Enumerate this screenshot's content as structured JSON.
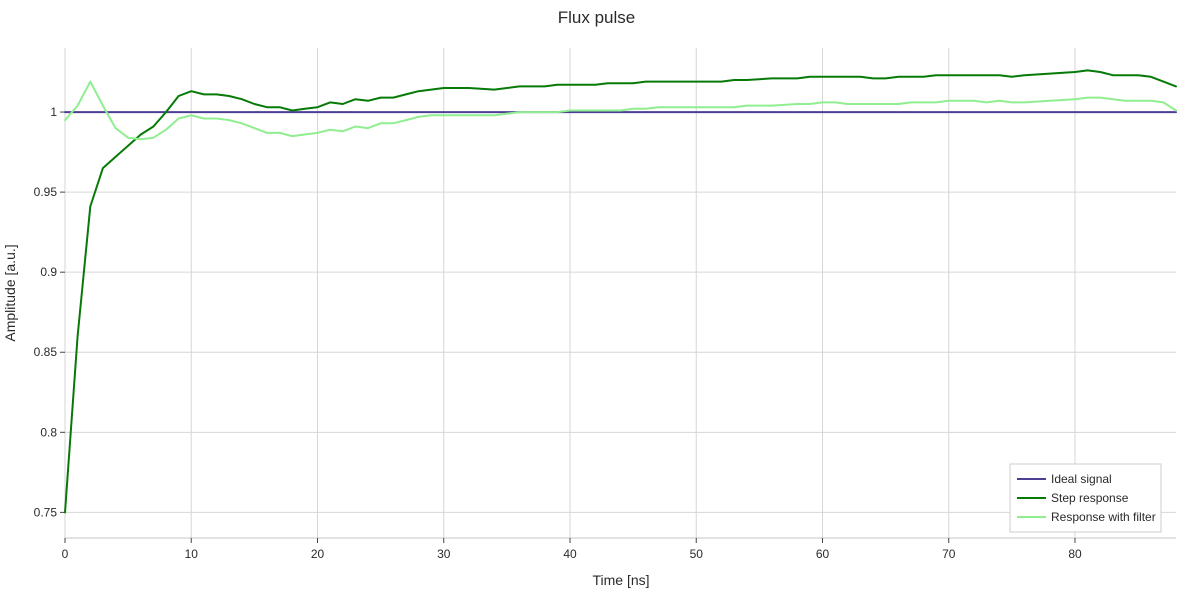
{
  "chart_data": {
    "type": "line",
    "title": "Flux pulse",
    "xlabel": "Time [ns]",
    "ylabel": "Amplitude [a.u.]",
    "xlim": [
      0,
      88
    ],
    "ylim": [
      0.734,
      1.04
    ],
    "xticks": [
      0,
      10,
      20,
      30,
      40,
      50,
      60,
      70,
      80
    ],
    "yticks": [
      0.75,
      0.8,
      0.85,
      0.9,
      0.95,
      1
    ],
    "ytick_labels": [
      "0.75",
      "0.8",
      "0.85",
      "0.9",
      "0.95",
      "1"
    ],
    "grid": true,
    "legend_position": "bottom-right",
    "series": [
      {
        "name": "Ideal signal",
        "color": "#4b3f93",
        "x": [
          0,
          88
        ],
        "y": [
          1.0,
          1.0
        ]
      },
      {
        "name": "Step response",
        "color": "#067a06",
        "x": [
          0,
          1,
          2,
          3,
          4,
          5,
          6,
          7,
          8,
          9,
          10,
          11,
          12,
          13,
          14,
          15,
          16,
          17,
          18,
          19,
          20,
          21,
          22,
          23,
          24,
          25,
          26,
          27,
          28,
          29,
          30,
          32,
          34,
          36,
          37,
          38,
          39,
          40,
          41,
          42,
          43,
          44,
          45,
          46,
          47,
          48,
          50,
          52,
          53,
          54,
          56,
          58,
          59,
          60,
          61,
          62,
          63,
          64,
          65,
          66,
          67,
          68,
          69,
          70,
          71,
          72,
          73,
          74,
          75,
          76,
          78,
          80,
          81,
          82,
          83,
          84,
          85,
          86,
          87,
          88
        ],
        "y": [
          0.75,
          0.86,
          0.941,
          0.965,
          0.972,
          0.979,
          0.986,
          0.991,
          1.0,
          1.01,
          1.013,
          1.011,
          1.011,
          1.01,
          1.008,
          1.005,
          1.003,
          1.003,
          1.001,
          1.002,
          1.003,
          1.006,
          1.005,
          1.008,
          1.007,
          1.009,
          1.009,
          1.011,
          1.013,
          1.014,
          1.015,
          1.015,
          1.014,
          1.016,
          1.016,
          1.016,
          1.017,
          1.017,
          1.017,
          1.017,
          1.018,
          1.018,
          1.018,
          1.019,
          1.019,
          1.019,
          1.019,
          1.019,
          1.02,
          1.02,
          1.021,
          1.021,
          1.022,
          1.022,
          1.022,
          1.022,
          1.022,
          1.021,
          1.021,
          1.022,
          1.022,
          1.022,
          1.023,
          1.023,
          1.023,
          1.023,
          1.023,
          1.023,
          1.022,
          1.023,
          1.024,
          1.025,
          1.026,
          1.025,
          1.023,
          1.023,
          1.023,
          1.022,
          1.019,
          1.016
        ]
      },
      {
        "name": "Response with filter",
        "color": "#90ee90",
        "x": [
          0,
          1,
          2,
          3,
          4,
          5,
          6,
          7,
          8,
          9,
          10,
          11,
          12,
          13,
          14,
          15,
          16,
          17,
          18,
          19,
          20,
          21,
          22,
          23,
          24,
          25,
          26,
          27,
          28,
          29,
          30,
          32,
          34,
          36,
          37,
          38,
          39,
          40,
          41,
          42,
          43,
          44,
          45,
          46,
          47,
          48,
          50,
          52,
          53,
          54,
          56,
          58,
          59,
          60,
          61,
          62,
          63,
          64,
          65,
          66,
          67,
          68,
          69,
          70,
          71,
          72,
          73,
          74,
          75,
          76,
          78,
          80,
          81,
          82,
          83,
          84,
          85,
          86,
          87,
          88
        ],
        "y": [
          0.995,
          1.004,
          1.019,
          1.004,
          0.99,
          0.984,
          0.983,
          0.984,
          0.989,
          0.996,
          0.998,
          0.996,
          0.996,
          0.995,
          0.993,
          0.99,
          0.987,
          0.987,
          0.985,
          0.986,
          0.987,
          0.989,
          0.988,
          0.991,
          0.99,
          0.993,
          0.993,
          0.995,
          0.997,
          0.998,
          0.998,
          0.998,
          0.998,
          1.0,
          1.0,
          1.0,
          1.0,
          1.001,
          1.001,
          1.001,
          1.001,
          1.001,
          1.002,
          1.002,
          1.003,
          1.003,
          1.003,
          1.003,
          1.003,
          1.004,
          1.004,
          1.005,
          1.005,
          1.006,
          1.006,
          1.005,
          1.005,
          1.005,
          1.005,
          1.005,
          1.006,
          1.006,
          1.006,
          1.007,
          1.007,
          1.007,
          1.006,
          1.007,
          1.006,
          1.006,
          1.007,
          1.008,
          1.009,
          1.009,
          1.008,
          1.007,
          1.007,
          1.007,
          1.006,
          1.001
        ]
      }
    ]
  }
}
